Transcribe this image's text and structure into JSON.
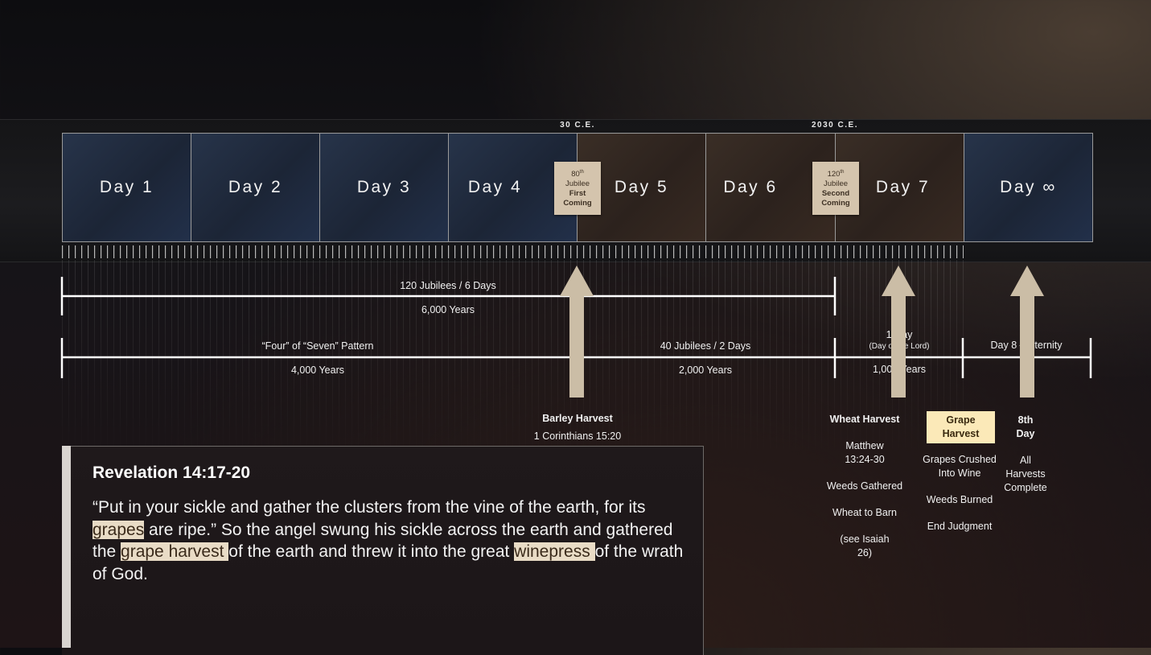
{
  "era_labels": {
    "first": "30 C.E.",
    "second": "2030 C.E."
  },
  "days": [
    {
      "label": "Day 1"
    },
    {
      "label": "Day 2"
    },
    {
      "label": "Day 3"
    },
    {
      "label": "Day 4"
    },
    {
      "label": "Day 5"
    },
    {
      "label": "Day 6"
    },
    {
      "label": "Day 7"
    },
    {
      "label": "Day ∞"
    }
  ],
  "jubilee_tags": [
    {
      "num": "80",
      "sup": "th",
      "line2": "Jubilee",
      "line3": "First",
      "line4": "Coming"
    },
    {
      "num": "120",
      "sup": "th",
      "line2": "Jubilee",
      "line3": "Second",
      "line4": "Coming"
    }
  ],
  "spans": {
    "six_days": {
      "top": "120 Jubilees / 6 Days",
      "bottom": "6,000 Years"
    },
    "four_seven": {
      "top": "“Four” of “Seven” Pattern",
      "bottom": "4,000 Years"
    },
    "forty": {
      "top": "40 Jubilees / 2 Days",
      "bottom": "2,000 Years"
    },
    "one_day": {
      "top": "1 Day",
      "sub": "(Day of the Lord)",
      "bottom": "1,000 Years"
    },
    "eighth": {
      "top": "Day 8 – Eternity",
      "bottom": "∞"
    }
  },
  "barley": {
    "title": "Barley Harvest",
    "ref": "1 Corinthians 15:20"
  },
  "wheat": {
    "title": "Wheat Harvest",
    "items": [
      "Matthew 13:24-30",
      "Weeds Gathered",
      "Wheat to Barn",
      "(see Isaiah 26)"
    ]
  },
  "grape": {
    "title": "Grape Harvest",
    "items": [
      "Grapes Crushed Into Wine",
      "Weeds Burned",
      "End Judgment"
    ]
  },
  "eighth_day": {
    "title": "8th Day",
    "items": [
      "All Harvests Complete"
    ]
  },
  "revelation": {
    "title": "Revelation 14:17-20",
    "p1": "“Put in your sickle and gather the clusters from the vine of the earth, for its ",
    "h1": "grapes",
    "p2": " are ripe.”  So the angel swung his sickle across the earth and gathered the ",
    "h2": "grape harvest ",
    "p3": "of the earth and threw it into the great ",
    "h3": "winepress ",
    "p4": "of the wrath of God."
  },
  "colors": {
    "arrow": "#cbbda6",
    "tag": "#d4c4ad",
    "highlight": "#e9dcc6",
    "grape": "#fbe9b8"
  }
}
